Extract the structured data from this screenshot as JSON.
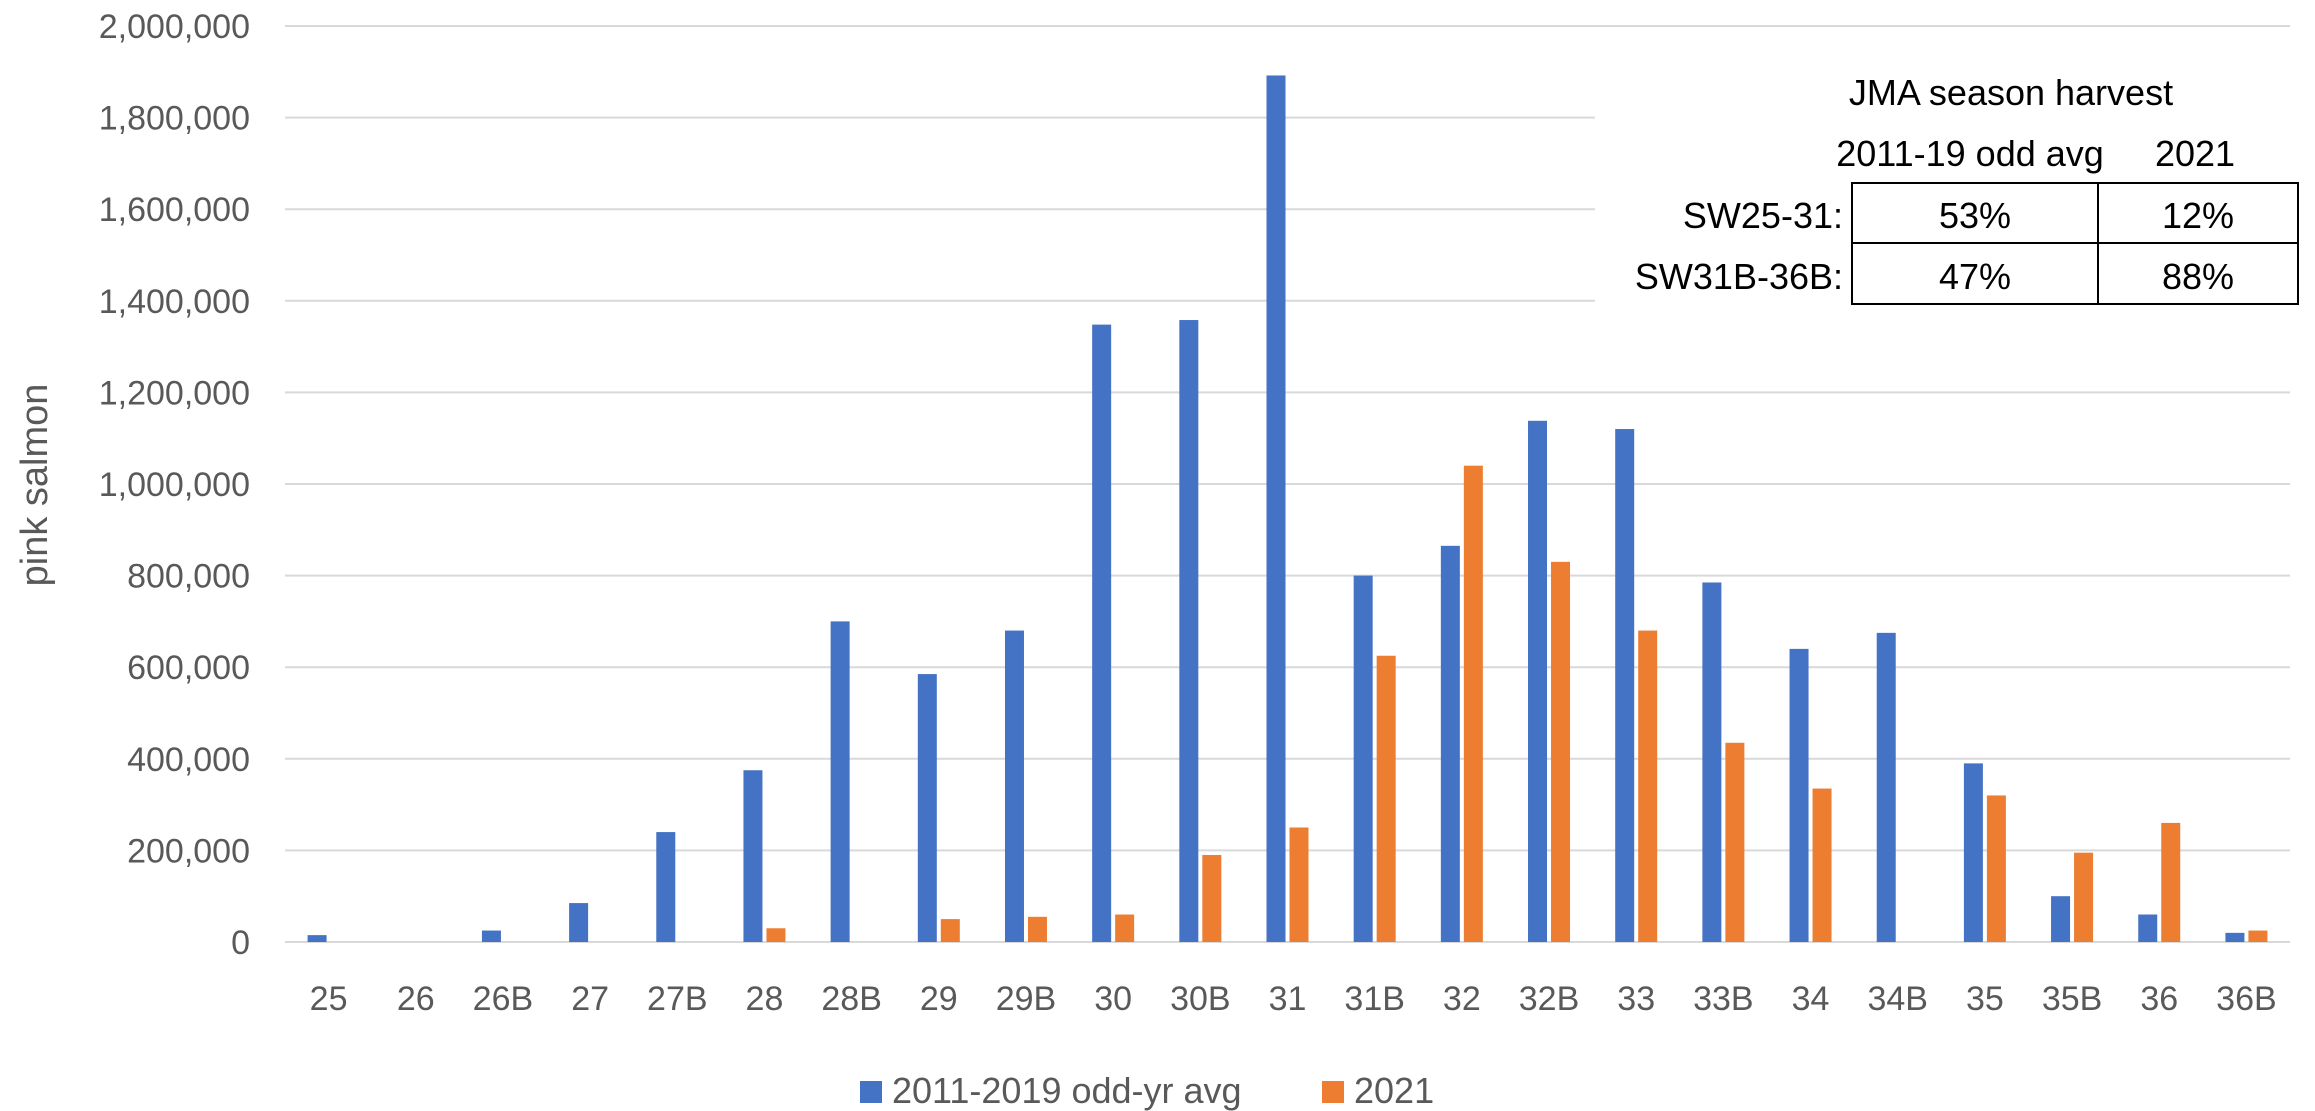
{
  "chart_data": {
    "type": "bar",
    "title": "",
    "xlabel": "",
    "ylabel": "pink salmon",
    "ylim": [
      0,
      2000000
    ],
    "y_ticks": [
      0,
      200000,
      400000,
      600000,
      800000,
      1000000,
      1200000,
      1400000,
      1600000,
      1800000,
      2000000
    ],
    "grid": true,
    "legend_position": "bottom",
    "categories": [
      "25",
      "26",
      "26B",
      "27",
      "27B",
      "28",
      "28B",
      "29",
      "29B",
      "30",
      "30B",
      "31",
      "31B",
      "32",
      "32B",
      "33",
      "33B",
      "34",
      "34B",
      "35",
      "35B",
      "36",
      "36B"
    ],
    "series": [
      {
        "name": "2011-2019 odd-yr avg",
        "color": "#4472C4",
        "values": [
          15000,
          0,
          25000,
          85000,
          240000,
          375000,
          700000,
          585000,
          680000,
          1348000,
          1358000,
          1892000,
          800000,
          865000,
          1138000,
          1120000,
          785000,
          640000,
          675000,
          390000,
          100000,
          60000,
          20000
        ]
      },
      {
        "name": "2021",
        "color": "#ED7D31",
        "values": [
          0,
          0,
          0,
          0,
          0,
          30000,
          0,
          50000,
          55000,
          60000,
          190000,
          250000,
          625000,
          1040000,
          830000,
          680000,
          435000,
          335000,
          0,
          320000,
          195000,
          260000,
          25000
        ]
      }
    ],
    "inset_table": {
      "title": "JMA season harvest",
      "col_headers": [
        "2011-19 odd avg",
        "2021"
      ],
      "rows": [
        {
          "label": "SW25-31:",
          "values": [
            "53%",
            "12%"
          ]
        },
        {
          "label": "SW31B-36B:",
          "values": [
            "47%",
            "88%"
          ]
        }
      ]
    }
  }
}
